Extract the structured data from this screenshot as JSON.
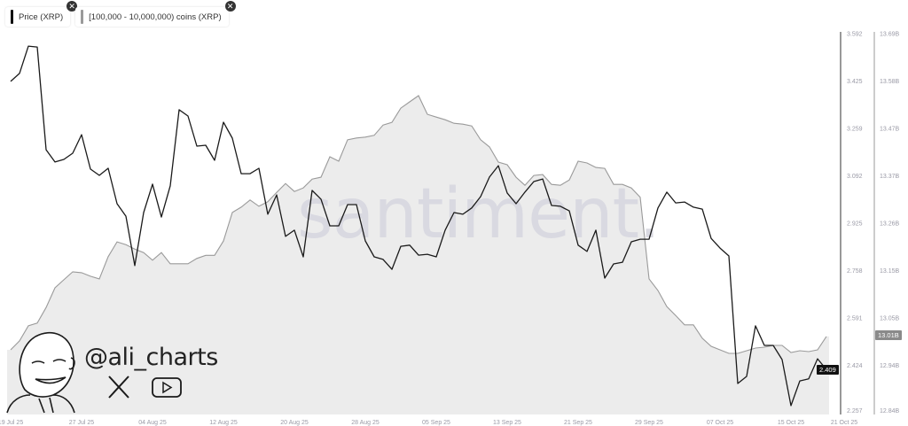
{
  "legend": {
    "items": [
      {
        "label": "Price (XRP)",
        "color": "#111111"
      },
      {
        "label": "[100,000 - 10,000,000) coins (XRP)",
        "color": "#9a9a9a"
      }
    ],
    "close_icon": "close-circle-icon"
  },
  "watermark": "santiment.",
  "branding": {
    "handle": "@ali_charts",
    "icons": [
      "avatar-illustration",
      "x-logo-icon",
      "youtube-icon"
    ]
  },
  "chart_data": {
    "type": "line",
    "x_tick_labels": [
      "19 Jul 25",
      "27 Jul 25",
      "04 Aug 25",
      "12 Aug 25",
      "20 Aug 25",
      "28 Aug 25",
      "05 Sep 25",
      "13 Sep 25",
      "21 Sep 25",
      "29 Sep 25",
      "07 Oct 25",
      "15 Oct 25",
      "21 Oct 25"
    ],
    "x_tick_dates": [
      "2025-07-19",
      "2025-07-27",
      "2025-08-04",
      "2025-08-12",
      "2025-08-20",
      "2025-08-28",
      "2025-09-05",
      "2025-09-13",
      "2025-09-21",
      "2025-09-29",
      "2025-10-07",
      "2025-10-15",
      "2025-10-21"
    ],
    "xlim": [
      "2025-07-19",
      "2025-10-21"
    ],
    "dates": [
      "2025-07-19",
      "2025-07-20",
      "2025-07-21",
      "2025-07-22",
      "2025-07-23",
      "2025-07-24",
      "2025-07-25",
      "2025-07-26",
      "2025-07-27",
      "2025-07-28",
      "2025-07-29",
      "2025-07-30",
      "2025-07-31",
      "2025-08-01",
      "2025-08-02",
      "2025-08-03",
      "2025-08-04",
      "2025-08-05",
      "2025-08-06",
      "2025-08-07",
      "2025-08-08",
      "2025-08-09",
      "2025-08-10",
      "2025-08-11",
      "2025-08-12",
      "2025-08-13",
      "2025-08-14",
      "2025-08-15",
      "2025-08-16",
      "2025-08-17",
      "2025-08-18",
      "2025-08-19",
      "2025-08-20",
      "2025-08-21",
      "2025-08-22",
      "2025-08-23",
      "2025-08-24",
      "2025-08-25",
      "2025-08-26",
      "2025-08-27",
      "2025-08-28",
      "2025-08-29",
      "2025-08-30",
      "2025-08-31",
      "2025-09-01",
      "2025-09-02",
      "2025-09-03",
      "2025-09-04",
      "2025-09-05",
      "2025-09-06",
      "2025-09-07",
      "2025-09-08",
      "2025-09-09",
      "2025-09-10",
      "2025-09-11",
      "2025-09-12",
      "2025-09-13",
      "2025-09-14",
      "2025-09-15",
      "2025-09-16",
      "2025-09-17",
      "2025-09-18",
      "2025-09-19",
      "2025-09-20",
      "2025-09-21",
      "2025-09-22",
      "2025-09-23",
      "2025-09-24",
      "2025-09-25",
      "2025-09-26",
      "2025-09-27",
      "2025-09-28",
      "2025-09-29",
      "2025-09-30",
      "2025-10-01",
      "2025-10-02",
      "2025-10-03",
      "2025-10-04",
      "2025-10-05",
      "2025-10-06",
      "2025-10-07",
      "2025-10-08",
      "2025-10-09",
      "2025-10-10",
      "2025-10-11",
      "2025-10-12",
      "2025-10-13",
      "2025-10-14",
      "2025-10-15",
      "2025-10-16",
      "2025-10-17",
      "2025-10-18",
      "2025-10-19"
    ],
    "series": [
      {
        "name": "Price (XRP)",
        "axis": "left",
        "style": "line",
        "color": "#1a1a1a",
        "ylim": [
          2.257,
          3.592
        ],
        "tick_labels": [
          "3.592",
          "3.425",
          "3.259",
          "3.092",
          "2.925",
          "2.758",
          "2.591",
          "2.424",
          "2.257"
        ],
        "current_value_label": "2.409",
        "values": [
          3.424,
          3.452,
          3.548,
          3.545,
          3.183,
          3.14,
          3.149,
          3.171,
          3.236,
          3.115,
          3.093,
          3.118,
          2.993,
          2.949,
          2.775,
          2.962,
          3.062,
          2.946,
          3.056,
          3.324,
          3.302,
          3.196,
          3.199,
          3.146,
          3.28,
          3.224,
          3.099,
          3.099,
          3.118,
          2.956,
          3.024,
          2.878,
          2.9,
          2.806,
          3.04,
          3.009,
          2.915,
          2.915,
          2.99,
          2.99,
          2.862,
          2.806,
          2.797,
          2.762,
          2.843,
          2.847,
          2.812,
          2.815,
          2.806,
          2.9,
          2.962,
          2.956,
          2.978,
          3.018,
          3.087,
          3.127,
          3.031,
          2.993,
          3.034,
          3.071,
          3.08,
          2.987,
          2.984,
          2.968,
          2.847,
          2.825,
          2.9,
          2.731,
          2.781,
          2.787,
          2.859,
          2.868,
          2.868,
          2.978,
          3.034,
          2.996,
          2.999,
          2.981,
          2.974,
          2.871,
          2.837,
          2.809,
          2.36,
          2.385,
          2.563,
          2.494,
          2.494,
          2.444,
          2.282,
          2.369,
          2.376,
          2.447,
          2.409
        ]
      },
      {
        "name": "[100,000 - 10,000,000) coins (XRP)",
        "axis": "right",
        "style": "area",
        "color": "#9a9a9a",
        "fill": "#ececec",
        "ylim": [
          12.84,
          13.69
        ],
        "tick_labels": [
          "13.69B",
          "13.58B",
          "13.47B",
          "13.37B",
          "13.26B",
          "13.15B",
          "13.05B",
          "12.94B",
          "12.84B"
        ],
        "current_value_label": "13.01B",
        "values": [
          12.981,
          13.001,
          13.035,
          13.041,
          13.076,
          13.12,
          13.138,
          13.156,
          13.154,
          13.146,
          13.14,
          13.19,
          13.223,
          13.217,
          13.207,
          13.199,
          13.182,
          13.199,
          13.174,
          13.174,
          13.174,
          13.186,
          13.193,
          13.193,
          13.225,
          13.289,
          13.301,
          13.317,
          13.303,
          13.313,
          13.334,
          13.354,
          13.336,
          13.344,
          13.364,
          13.368,
          13.414,
          13.404,
          13.452,
          13.456,
          13.458,
          13.462,
          13.485,
          13.491,
          13.523,
          13.537,
          13.551,
          13.509,
          13.503,
          13.497,
          13.489,
          13.487,
          13.483,
          13.452,
          13.436,
          13.402,
          13.396,
          13.368,
          13.35,
          13.372,
          13.374,
          13.352,
          13.35,
          13.362,
          13.404,
          13.4,
          13.39,
          13.388,
          13.352,
          13.352,
          13.344,
          13.323,
          13.14,
          13.114,
          13.078,
          13.058,
          13.037,
          13.037,
          13.007,
          12.989,
          12.981,
          12.973,
          12.973,
          12.979,
          12.985,
          12.987,
          12.991,
          12.991,
          12.975,
          12.979,
          12.977,
          12.981,
          13.011
        ]
      }
    ],
    "grid": false,
    "legend_position": "top-left"
  }
}
